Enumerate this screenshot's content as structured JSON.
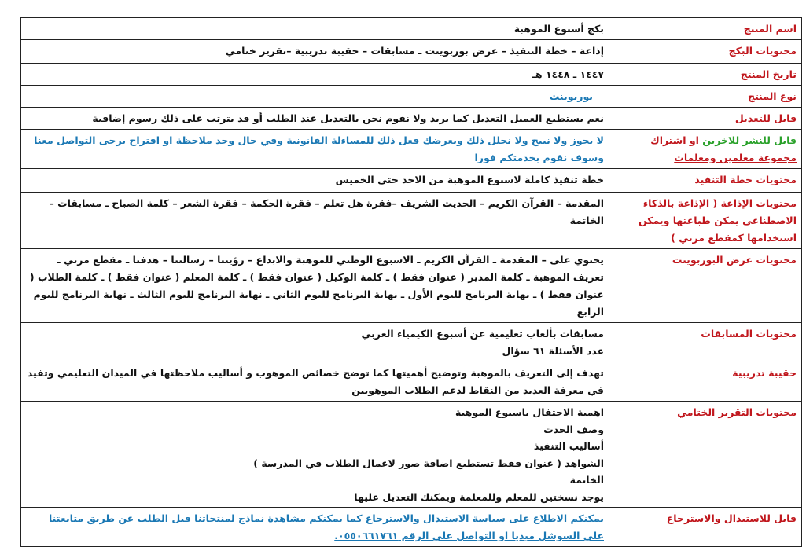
{
  "rows": [
    {
      "label": "اسم المنتج",
      "lines": [
        "بكج أسبوع الموهبة"
      ]
    },
    {
      "label": "محتويات البكج",
      "lines": [
        "إذاعة – خطة التنفيذ – عرض بوربوينت ـ  مسابقات – حقيبة تدريبية –تقرير ختامي"
      ]
    },
    {
      "label": "تاريخ المنتج",
      "lines": [
        "١٤٤٧ ـ ١٤٤٨ هـ"
      ]
    },
    {
      "label": "نوع المنتج",
      "lines": [
        "بوربوينت"
      ]
    },
    {
      "label": "قابل للتعديل",
      "prefix": "نعم",
      "lines": [
        " يستطيع العميل التعديل كما يريد  ولا نقوم نحن  بالتعديل عند الطلب أو قد يترتب على ذلك رسوم إضافية"
      ]
    },
    {
      "label_parts": [
        "قابل للنشر للاخرين",
        "او اشتراك",
        "مجموعة معلمين ومعلمات"
      ],
      "lines": [
        "لا يجوز ولا نبيح ولا نحلل ذلك ويعرضك فعل ذلك للمساءلة القانونية وفي حال وجد ملاحظة او اقتراح يرجى التواصل معنا",
        "وسوف نقوم بخدمتكم فورا"
      ]
    },
    {
      "label": "محتويات خطة التنفيذ",
      "lines": [
        "خطة تنفيذ كاملة لاسبوع الموهبة من الاحد حتى الخميس"
      ]
    },
    {
      "label": "محتويات الإذاعة ( الإذاعة بالذكاء الاصطناعي يمكن طباعتها ويمكن استخدامها كمقطع مرني )",
      "lines": [
        "المقدمة – القرآن الكريم – الحديث الشريف –فقرة هل تعلم – فقرة الحكمة  – فقرة الشعر – كلمة الصباح ـ مسابقات – الخاتمة"
      ]
    },
    {
      "label": "محتويات عرض البوربوينت",
      "lines": [
        "يحتوي على – المقدمة ـ القرآن الكريم ـ الاسبوع الوطني للموهبة والابداع – رؤيتنا – رسالتنا – هدفنا ـ مقطع مرني ـ تعريف الموهبة ـ كلمة المدير ( عنوان فقط ) ـ كلمة الوكيل ( عنوان فقط ) ـ كلمة المعلم ( عنوان فقط ) ـ كلمة الطلاب ( عنوان فقط ) ـ نهاية البرنامج لليوم الأول ـ نهاية البرنامج لليوم الثاني ـ نهاية البرنامج لليوم الثالث ـ نهاية البرنامج لليوم الرابع"
      ]
    },
    {
      "label": "محتويات المسابقات",
      "lines": [
        "مسابقات بألعاب تعليمية عن أسبوع الكيمياء العربي",
        "عدد الأسئلة ٦١ سؤال"
      ]
    },
    {
      "label": "حقيبة تدريبية",
      "lines": [
        "تهدف إلى التعريف بالموهبة وتوضيح أهميتها كما توضح خصائص الموهوب و أساليب ملاحظتها في الميدان التعليمي وتفيد في معرفة العديد من النقاط لدعم الطلاب الموهوبين"
      ]
    },
    {
      "label": "محتويات التقرير الختامي",
      "lines": [
        "اهمية الاحتفال باسبوع الموهبة",
        "وصف الحدث",
        "أساليب التنفيذ",
        "الشواهد ( عنوان فقط تستطيع اضافة صور لاعمال الطلاب في المدرسة )",
        "الخاتمة",
        "يوجد نسختين للمعلم وللمعلمة ويمكنك التعديل عليها"
      ]
    },
    {
      "label": "قابل للاستبدال والاسترجاع",
      "lines": [
        "يمكنكم الاطلاع على سياسة الاستبدال والاسترجاع  كما يمكنكم مشاهدة نماذج لمنتجاتنا قبل الطلب عن طريق متابعتنا على السوشل ميديا او التواصل على الرقم ٠٥٥٠٦٦١٧٦١."
      ]
    }
  ],
  "colors": {
    "label": "#c0161c",
    "accent_blue": "#1a78b4",
    "green": "#2aa12a"
  }
}
